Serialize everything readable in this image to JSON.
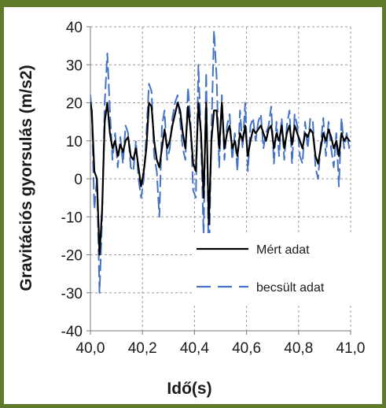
{
  "chart_data": {
    "type": "line",
    "xlabel": "Idő(s)",
    "ylabel": "Gravitációs gyorsulás  (m/s2)",
    "xlim": [
      40.0,
      41.0
    ],
    "ylim": [
      -40,
      40
    ],
    "xticks": [
      "40,0",
      "40,2",
      "40,4",
      "40,6",
      "40,8",
      "41,0"
    ],
    "yticks": [
      "40",
      "30",
      "20",
      "10",
      "0",
      "-10",
      "-20",
      "-30",
      "-40"
    ],
    "grid": true,
    "legend_position": "bottom-right",
    "series": [
      {
        "name": "Mért adat",
        "color": "#000000",
        "dash": "solid",
        "x": [
          40.0,
          40.005,
          40.015,
          40.025,
          40.035,
          40.045,
          40.055,
          40.065,
          40.075,
          40.085,
          40.095,
          40.105,
          40.115,
          40.125,
          40.135,
          40.145,
          40.155,
          40.165,
          40.175,
          40.185,
          40.195,
          40.205,
          40.215,
          40.225,
          40.235,
          40.245,
          40.255,
          40.265,
          40.275,
          40.285,
          40.295,
          40.305,
          40.315,
          40.325,
          40.335,
          40.345,
          40.355,
          40.365,
          40.375,
          40.385,
          40.395,
          40.405,
          40.415,
          40.425,
          40.435,
          40.445,
          40.455,
          40.465,
          40.475,
          40.485,
          40.495,
          40.505,
          40.515,
          40.525,
          40.535,
          40.545,
          40.555,
          40.565,
          40.575,
          40.585,
          40.595,
          40.605,
          40.615,
          40.625,
          40.635,
          40.645,
          40.655,
          40.665,
          40.675,
          40.685,
          40.695,
          40.705,
          40.715,
          40.725,
          40.735,
          40.745,
          40.755,
          40.765,
          40.775,
          40.785,
          40.795,
          40.805,
          40.815,
          40.825,
          40.835,
          40.845,
          40.855,
          40.865,
          40.875,
          40.885,
          40.895,
          40.905,
          40.915,
          40.925,
          40.935,
          40.945,
          40.955,
          40.965,
          40.975,
          40.985,
          40.995
        ],
        "values": [
          20,
          18,
          2,
          0,
          -20,
          -8,
          15,
          20,
          12,
          8,
          10,
          6,
          9,
          7,
          10,
          11,
          6,
          5,
          8,
          3,
          -2,
          2,
          8,
          20,
          19,
          10,
          5,
          3,
          8,
          13,
          8,
          10,
          14,
          17,
          20,
          18,
          12,
          8,
          19,
          13,
          4,
          2,
          20,
          12,
          -5,
          20,
          -12,
          10,
          18,
          18,
          8,
          20,
          8,
          12,
          14,
          8,
          10,
          6,
          12,
          10,
          14,
          6,
          10,
          13,
          12,
          13,
          14,
          12,
          10,
          13,
          14,
          8,
          12,
          10,
          14,
          8,
          12,
          14,
          9,
          14,
          12,
          10,
          8,
          12,
          11,
          13,
          12,
          6,
          4,
          8,
          12,
          10,
          13,
          11,
          8,
          10,
          6,
          12,
          10,
          11,
          10
        ]
      },
      {
        "name": "becsült adat",
        "color": "#4472c4",
        "dash": "long-dash",
        "x": [
          40.0,
          40.005,
          40.015,
          40.025,
          40.035,
          40.045,
          40.055,
          40.065,
          40.075,
          40.085,
          40.095,
          40.105,
          40.115,
          40.125,
          40.135,
          40.145,
          40.155,
          40.165,
          40.175,
          40.185,
          40.195,
          40.205,
          40.215,
          40.225,
          40.235,
          40.245,
          40.255,
          40.265,
          40.275,
          40.285,
          40.295,
          40.305,
          40.315,
          40.325,
          40.335,
          40.345,
          40.355,
          40.365,
          40.375,
          40.385,
          40.395,
          40.405,
          40.415,
          40.425,
          40.435,
          40.445,
          40.455,
          40.465,
          40.475,
          40.485,
          40.495,
          40.505,
          40.515,
          40.525,
          40.535,
          40.545,
          40.555,
          40.565,
          40.575,
          40.585,
          40.595,
          40.605,
          40.615,
          40.625,
          40.635,
          40.645,
          40.655,
          40.665,
          40.675,
          40.685,
          40.695,
          40.705,
          40.715,
          40.725,
          40.735,
          40.745,
          40.755,
          40.765,
          40.775,
          40.785,
          40.795,
          40.805,
          40.815,
          40.825,
          40.835,
          40.845,
          40.855,
          40.865,
          40.875,
          40.885,
          40.895,
          40.905,
          40.915,
          40.925,
          40.935,
          40.945,
          40.955,
          40.965,
          40.975,
          40.985,
          40.995
        ],
        "values": [
          22,
          18,
          -8,
          0,
          -30,
          -10,
          20,
          33,
          18,
          5,
          12,
          3,
          11,
          4,
          14,
          12,
          3,
          2,
          10,
          0,
          -5,
          0,
          12,
          25,
          23,
          6,
          2,
          -10,
          14,
          18,
          5,
          8,
          16,
          20,
          22,
          15,
          8,
          5,
          24,
          15,
          -3,
          -5,
          30,
          10,
          -15,
          28,
          -25,
          12,
          39,
          27,
          3,
          22,
          5,
          14,
          17,
          5,
          12,
          2,
          18,
          8,
          20,
          2,
          14,
          16,
          10,
          15,
          17,
          8,
          12,
          14,
          19,
          4,
          15,
          6,
          16,
          5,
          14,
          18,
          4,
          17,
          14,
          6,
          4,
          15,
          8,
          16,
          15,
          3,
          0,
          9,
          16,
          6,
          15,
          8,
          3,
          12,
          -2,
          16,
          8,
          12,
          8
        ]
      }
    ]
  }
}
